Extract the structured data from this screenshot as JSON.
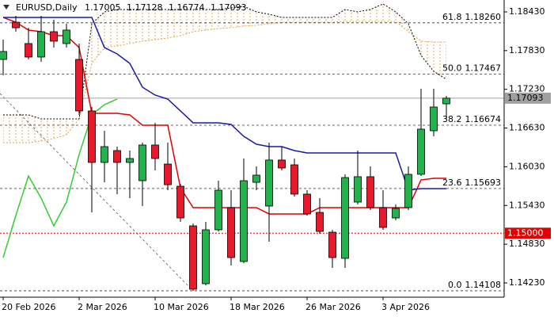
{
  "chart_data": {
    "type": "candlestick",
    "title": "EURUSD,Daily",
    "ohlc_labels": [
      "1.17005",
      "1.17128",
      "1.16774",
      "1.17093"
    ],
    "categories": [
      "20 Feb 2026",
      null,
      null,
      null,
      null,
      null,
      "2 Mar 2026",
      null,
      null,
      null,
      null,
      null,
      "10 Mar 2026",
      null,
      null,
      null,
      null,
      null,
      "18 Mar 2026",
      null,
      null,
      null,
      null,
      null,
      "26 Mar 2026",
      null,
      null,
      null,
      null,
      null,
      "3 Apr 2026",
      null,
      null,
      null,
      null,
      null
    ],
    "open": [
      1.17693,
      1.1827,
      1.17939,
      1.1773,
      1.18123,
      1.17939,
      1.17693,
      1.16895,
      1.16097,
      1.16281,
      1.16097,
      1.15814,
      1.16367,
      1.16072,
      1.15728,
      1.15114,
      1.14218,
      1.15053,
      1.15397,
      1.14562,
      1.15789,
      1.15421,
      1.16134,
      1.1606,
      1.15606,
      1.15323,
      1.15016,
      1.14611,
      1.15483,
      1.15876,
      1.15397,
      1.15237,
      1.15397,
      1.15913,
      1.16588,
      1.17005
    ],
    "high": [
      1.18,
      1.18369,
      1.18184,
      1.18369,
      1.18307,
      1.18246,
      1.17939,
      1.16956,
      1.16588,
      1.16342,
      1.16281,
      1.16404,
      1.16711,
      1.16404,
      1.15765,
      1.15151,
      1.15176,
      1.15814,
      1.15667,
      1.16158,
      1.16035,
      1.16404,
      1.16342,
      1.16158,
      1.15667,
      1.15544,
      1.15053,
      1.15913,
      1.16281,
      1.16035,
      1.15667,
      1.15446,
      1.16035,
      1.17239,
      1.17239,
      1.17128
    ],
    "low": [
      1.17448,
      1.18123,
      1.17693,
      1.17656,
      1.17877,
      1.17877,
      1.16834,
      1.15323,
      1.15789,
      1.15606,
      1.15544,
      1.15421,
      1.15974,
      1.15667,
      1.15176,
      1.14108,
      1.14193,
      1.15028,
      1.145,
      1.14537,
      1.15667,
      1.14869,
      1.15974,
      1.15569,
      1.15274,
      1.14992,
      1.14464,
      1.14464,
      1.15446,
      1.1536,
      1.15053,
      1.152,
      1.1536,
      1.15888,
      1.16502,
      1.16774
    ],
    "close": [
      1.17816,
      1.18184,
      1.1773,
      1.18123,
      1.17976,
      1.18148,
      1.16895,
      1.16097,
      1.16342,
      1.16097,
      1.16158,
      1.16367,
      1.16158,
      1.15752,
      1.15237,
      1.14132,
      1.15053,
      1.15667,
      1.14623,
      1.15814,
      1.159,
      1.16134,
      1.16011,
      1.15606,
      1.15299,
      1.15028,
      1.14623,
      1.15863,
      1.15876,
      1.15397,
      1.1509,
      1.15384,
      1.15913,
      1.16613,
      1.16956,
      1.17093
    ],
    "up_color": "#22b14c",
    "down_color": "#e8192c",
    "cloud": {
      "span_a": {
        "color": "#e0a040",
        "values": [
          1.16404,
          1.16404,
          1.16404,
          1.16428,
          1.16465,
          1.16527,
          1.16772,
          1.17632,
          1.17877,
          1.17902,
          1.17939,
          1.17976,
          1.18,
          1.18025,
          1.18062,
          1.18123,
          1.18148,
          1.18172,
          1.18184,
          1.18209,
          1.18221,
          1.18246,
          1.1827,
          1.1827,
          1.1827,
          1.1827,
          1.1827,
          1.18283,
          1.18283,
          1.18283,
          1.18283,
          1.18283,
          1.18123,
          1.17976,
          1.17963,
          1.17963
        ]
      },
      "span_b": {
        "color": "#000000",
        "values": [
          1.16834,
          1.16834,
          1.16834,
          1.16772,
          1.16772,
          1.16772,
          1.16772,
          1.18246,
          1.1843,
          1.18467,
          1.18467,
          1.18467,
          1.18467,
          1.18467,
          1.18467,
          1.18467,
          1.18467,
          1.18467,
          1.18491,
          1.18516,
          1.1843,
          1.18393,
          1.18344,
          1.18344,
          1.18344,
          1.18344,
          1.18344,
          1.18467,
          1.1843,
          1.18467,
          1.18553,
          1.1843,
          1.18246,
          1.17755,
          1.17509,
          1.17386
        ]
      }
    },
    "overlays": [
      {
        "color": "#e00000",
        "values": [
          1.18344,
          1.1827,
          1.18148,
          1.18123,
          1.18062,
          1.18062,
          1.17877,
          1.16858,
          1.16858,
          1.16858,
          1.16834,
          1.16674,
          1.16674,
          1.16674,
          1.15704,
          1.15397,
          1.15397,
          1.15397,
          1.15397,
          1.15397,
          1.15397,
          1.15299,
          1.15299,
          1.15299,
          1.15299,
          1.15397,
          1.15397,
          1.15397,
          1.15397,
          1.15397,
          1.15397,
          1.15397,
          1.15397,
          1.15826,
          1.15851,
          1.15851
        ]
      },
      {
        "color": "#1a1aa6",
        "values": [
          1.18344,
          1.18344,
          1.18344,
          1.18344,
          1.18344,
          1.18344,
          1.18344,
          1.18344,
          1.17877,
          1.17779,
          1.17632,
          1.17263,
          1.17141,
          1.17079,
          1.16895,
          1.16711,
          1.16711,
          1.16711,
          1.16686,
          1.16502,
          1.16379,
          1.16342,
          1.16342,
          1.16281,
          1.16244,
          1.16244,
          1.16244,
          1.16244,
          1.16244,
          1.16244,
          1.16244,
          1.16244,
          1.15667,
          1.15692,
          1.15692,
          1.15692
        ]
      },
      {
        "color": "#33cc33",
        "values": [
          1.14623,
          1.15274,
          1.15888,
          1.15544,
          1.15114,
          1.15483,
          1.1622,
          1.16834,
          1.16993,
          1.17079,
          null,
          null,
          null,
          null,
          null,
          null,
          null,
          null,
          null,
          null,
          null,
          null,
          null,
          null,
          null,
          null,
          null,
          null,
          null,
          null,
          null,
          null,
          null,
          null,
          null,
          null
        ]
      }
    ],
    "levels": [
      {
        "ratio": "61.8",
        "value": 1.1826,
        "label": "1.18260"
      },
      {
        "ratio": "50.0",
        "value": 1.17467,
        "label": "1.17467"
      },
      {
        "ratio": "38.2",
        "value": 1.16674,
        "label": "1.16674"
      },
      {
        "ratio": "23.6",
        "value": 1.15693,
        "label": "1.15693"
      },
      {
        "ratio": "0.0",
        "value": 1.14108,
        "label": "1.14108"
      }
    ],
    "price_lines": [
      {
        "value": 1.17093,
        "label": "1.17093",
        "color": "#a0a0a0",
        "text_color": "#000000"
      },
      {
        "value": 1.15,
        "label": "1.15000",
        "color": "#e00000",
        "text_color": "#ffffff"
      }
    ],
    "ylim": [
      1.14009,
      1.18614
    ],
    "yticks": [
      {
        "value": 1.1843,
        "label": "1.18430"
      },
      {
        "value": 1.1783,
        "label": "1.17830"
      },
      {
        "value": 1.1723,
        "label": "1.17230"
      },
      {
        "value": 1.1663,
        "label": "1.16630"
      },
      {
        "value": 1.1603,
        "label": "1.16030"
      },
      {
        "value": 1.1543,
        "label": "1.15430"
      },
      {
        "value": 1.1483,
        "label": "1.14830"
      },
      {
        "value": 1.1423,
        "label": "1.14230"
      }
    ]
  }
}
